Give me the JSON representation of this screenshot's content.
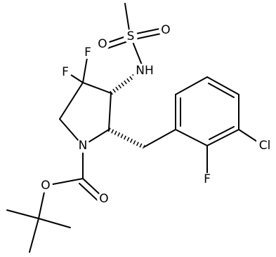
{
  "atoms": [
    "O",
    "S",
    "O",
    "NH",
    "F",
    "F",
    "N",
    "Cl",
    "F",
    "O",
    "O"
  ]
}
